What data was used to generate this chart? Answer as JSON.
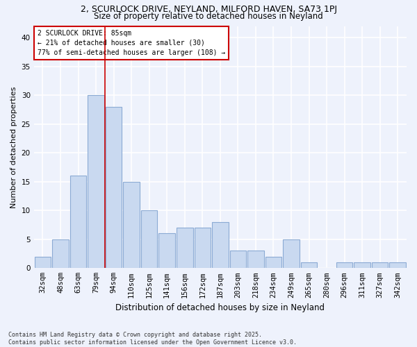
{
  "title": "2, SCURLOCK DRIVE, NEYLAND, MILFORD HAVEN, SA73 1PJ",
  "subtitle": "Size of property relative to detached houses in Neyland",
  "xlabel": "Distribution of detached houses by size in Neyland",
  "ylabel": "Number of detached properties",
  "categories": [
    "32sqm",
    "48sqm",
    "63sqm",
    "79sqm",
    "94sqm",
    "110sqm",
    "125sqm",
    "141sqm",
    "156sqm",
    "172sqm",
    "187sqm",
    "203sqm",
    "218sqm",
    "234sqm",
    "249sqm",
    "265sqm",
    "280sqm",
    "296sqm",
    "311sqm",
    "327sqm",
    "342sqm"
  ],
  "values": [
    2,
    5,
    16,
    30,
    28,
    15,
    10,
    6,
    7,
    7,
    8,
    3,
    3,
    2,
    5,
    1,
    0,
    1,
    1,
    1,
    1
  ],
  "bar_color": "#c9d9f0",
  "bar_edge_color": "#8baad4",
  "vline_color": "#cc0000",
  "vline_x": 3.5,
  "annotation_text": "2 SCURLOCK DRIVE: 85sqm\n← 21% of detached houses are smaller (30)\n77% of semi-detached houses are larger (108) →",
  "annotation_box_facecolor": "#ffffff",
  "annotation_box_edgecolor": "#cc0000",
  "background_color": "#eef2fc",
  "grid_color": "#ffffff",
  "footer_text": "Contains HM Land Registry data © Crown copyright and database right 2025.\nContains public sector information licensed under the Open Government Licence v3.0.",
  "ylim": [
    0,
    42
  ],
  "yticks": [
    0,
    5,
    10,
    15,
    20,
    25,
    30,
    35,
    40
  ],
  "title_fontsize": 9,
  "subtitle_fontsize": 8.5,
  "xlabel_fontsize": 8.5,
  "ylabel_fontsize": 8,
  "tick_fontsize": 7.5,
  "annot_fontsize": 7,
  "footer_fontsize": 6
}
